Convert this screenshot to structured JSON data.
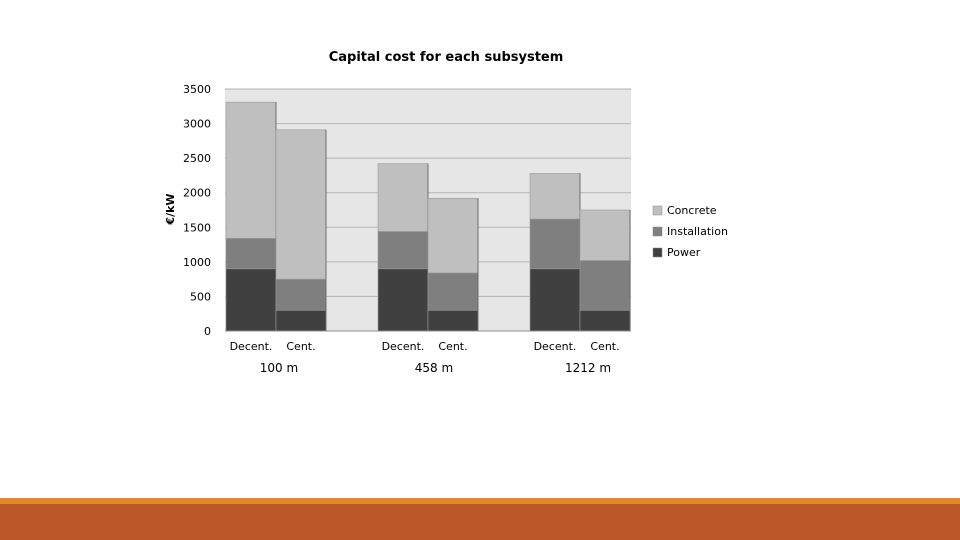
{
  "chart_data": {
    "type": "bar",
    "stacked": true,
    "title": "Capital cost for each subsystem",
    "xlabel": "",
    "ylabel": "€/kW",
    "ylim": [
      0,
      3500
    ],
    "yticks": [
      "0",
      "500",
      "1000",
      "1500",
      "2000",
      "2500",
      "3000",
      "3500"
    ],
    "grid": true,
    "legend_position": "right",
    "categories": [
      "Decent.",
      "Cent.",
      "Decent.",
      "Cent.",
      "Decent.",
      "Cent."
    ],
    "groups": [
      "100 m",
      "458 m",
      "1212 m"
    ],
    "series": [
      {
        "name": "Power",
        "color": "#404040",
        "values": [
          900,
          300,
          900,
          300,
          900,
          300
        ]
      },
      {
        "name": "Installation",
        "color": "#7f7f7f",
        "values": [
          440,
          450,
          540,
          540,
          720,
          720
        ]
      },
      {
        "name": "Concrete",
        "color": "#bfbfbf",
        "values": [
          1970,
          2160,
          980,
          1080,
          660,
          730
        ]
      }
    ],
    "legend_order": [
      "Concrete",
      "Installation",
      "Power"
    ],
    "plot_background": "#e6e6e6"
  },
  "theme": {
    "accent_line": "#e08a2a",
    "footer_band": "#bb5629"
  }
}
